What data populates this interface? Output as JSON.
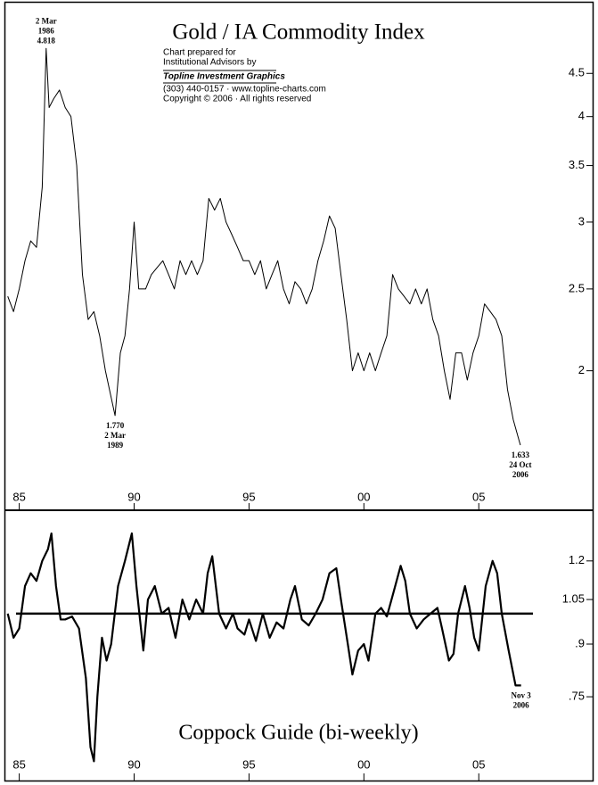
{
  "chart_data": [
    {
      "type": "line",
      "title": "Gold / IA Commodity Index",
      "credits": [
        "Chart prepared for",
        "Institutional Advisors by",
        "Topline Investment Graphics",
        "(303) 440-0157 · www.topline-charts.com",
        "Copyright © 2006 · All rights reserved"
      ],
      "log_scale": true,
      "color": "#000000",
      "xlim": [
        1984.55,
        2007.9
      ],
      "ylim": [
        1.46,
        5.3
      ],
      "xticks": [
        {
          "value": 1985,
          "label": "85"
        },
        {
          "value": 1990,
          "label": "90"
        },
        {
          "value": 1995,
          "label": "95"
        },
        {
          "value": 2000,
          "label": "00"
        },
        {
          "value": 2005,
          "label": "05"
        }
      ],
      "yticks": [
        4.5,
        4,
        3.5,
        3,
        2.5,
        2
      ],
      "x": [
        1984.5,
        1984.75,
        1985.0,
        1985.25,
        1985.5,
        1985.75,
        1986.0,
        1986.17,
        1986.3,
        1986.5,
        1986.75,
        1987.0,
        1987.25,
        1987.5,
        1987.75,
        1988.0,
        1988.25,
        1988.5,
        1988.75,
        1989.17,
        1989.4,
        1989.6,
        1989.8,
        1990.0,
        1990.2,
        1990.5,
        1990.75,
        1991.0,
        1991.25,
        1991.5,
        1991.75,
        1992.0,
        1992.25,
        1992.5,
        1992.75,
        1993.0,
        1993.25,
        1993.5,
        1993.75,
        1994.0,
        1994.25,
        1994.5,
        1994.75,
        1995.0,
        1995.25,
        1995.5,
        1995.75,
        1996.0,
        1996.25,
        1996.5,
        1996.75,
        1997.0,
        1997.25,
        1997.5,
        1997.75,
        1998.0,
        1998.25,
        1998.5,
        1998.75,
        1999.0,
        1999.25,
        1999.5,
        1999.75,
        2000.0,
        2000.25,
        2000.5,
        2000.75,
        2001.0,
        2001.25,
        2001.5,
        2001.75,
        2002.0,
        2002.25,
        2002.5,
        2002.75,
        2003.0,
        2003.25,
        2003.5,
        2003.75,
        2004.0,
        2004.25,
        2004.5,
        2004.75,
        2005.0,
        2005.25,
        2005.5,
        2005.75,
        2006.0,
        2006.25,
        2006.5,
        2006.81
      ],
      "values": [
        2.45,
        2.35,
        2.5,
        2.7,
        2.85,
        2.8,
        3.3,
        4.818,
        4.1,
        4.2,
        4.3,
        4.1,
        4.0,
        3.5,
        2.6,
        2.3,
        2.35,
        2.2,
        2.0,
        1.77,
        2.1,
        2.2,
        2.5,
        3.0,
        2.5,
        2.5,
        2.6,
        2.65,
        2.7,
        2.6,
        2.5,
        2.7,
        2.6,
        2.7,
        2.6,
        2.7,
        3.2,
        3.1,
        3.2,
        3.0,
        2.9,
        2.8,
        2.7,
        2.7,
        2.6,
        2.7,
        2.5,
        2.6,
        2.7,
        2.5,
        2.4,
        2.55,
        2.5,
        2.4,
        2.5,
        2.7,
        2.85,
        3.05,
        2.95,
        2.6,
        2.3,
        2.0,
        2.1,
        2.0,
        2.1,
        2.0,
        2.1,
        2.2,
        2.6,
        2.5,
        2.45,
        2.4,
        2.5,
        2.4,
        2.5,
        2.3,
        2.2,
        2.0,
        1.85,
        2.1,
        2.1,
        1.95,
        2.1,
        2.2,
        2.4,
        2.35,
        2.3,
        2.2,
        1.9,
        1.75,
        1.633
      ],
      "annotations": [
        {
          "x": 1986.17,
          "y": 4.818,
          "text": [
            "2 Mar",
            "1986",
            "4.818"
          ]
        },
        {
          "x": 1989.17,
          "y": 1.77,
          "text": [
            "1.770",
            "2 Mar",
            "1989"
          ]
        },
        {
          "x": 2006.81,
          "y": 1.633,
          "text": [
            "1.633",
            "24 Oct",
            "2006"
          ]
        }
      ]
    },
    {
      "type": "line",
      "title": "Coppock Guide (bi-weekly)",
      "log_scale": true,
      "color": "#000000",
      "reference_line": 1,
      "xlim": [
        1984.55,
        2007.9
      ],
      "ylim": [
        0.57,
        1.43
      ],
      "xticks": [
        {
          "value": 1985,
          "label": "85"
        },
        {
          "value": 1990,
          "label": "90"
        },
        {
          "value": 1995,
          "label": "95"
        },
        {
          "value": 2000,
          "label": "00"
        },
        {
          "value": 2005,
          "label": "05"
        }
      ],
      "yticks": [
        1.2,
        1.05,
        {
          "value": 0.9,
          "label": ".9"
        },
        {
          "value": 0.75,
          "label": ".75"
        }
      ],
      "x": [
        1984.5,
        1984.75,
        1985.0,
        1985.25,
        1985.5,
        1985.75,
        1986.0,
        1986.25,
        1986.4,
        1986.6,
        1986.8,
        1987.0,
        1987.3,
        1987.6,
        1987.9,
        1988.1,
        1988.25,
        1988.4,
        1988.6,
        1988.8,
        1989.0,
        1989.3,
        1989.6,
        1989.9,
        1990.1,
        1990.4,
        1990.6,
        1990.9,
        1991.2,
        1991.5,
        1991.8,
        1992.1,
        1992.4,
        1992.7,
        1993.0,
        1993.2,
        1993.4,
        1993.7,
        1994.0,
        1994.3,
        1994.5,
        1994.8,
        1995.0,
        1995.3,
        1995.6,
        1995.9,
        1996.2,
        1996.5,
        1996.8,
        1997.0,
        1997.3,
        1997.6,
        1997.9,
        1998.2,
        1998.5,
        1998.8,
        1999.0,
        1999.3,
        1999.5,
        1999.75,
        2000.0,
        2000.2,
        2000.5,
        2000.75,
        2001.0,
        2001.3,
        2001.6,
        2001.8,
        2002.0,
        2002.3,
        2002.6,
        2002.9,
        2003.2,
        2003.4,
        2003.7,
        2003.9,
        2004.1,
        2004.4,
        2004.6,
        2004.8,
        2005.0,
        2005.3,
        2005.6,
        2005.8,
        2006.0,
        2006.3,
        2006.6,
        2006.84
      ],
      "values": [
        1.0,
        0.92,
        0.95,
        1.1,
        1.15,
        1.12,
        1.2,
        1.25,
        1.32,
        1.1,
        0.98,
        0.98,
        0.99,
        0.95,
        0.8,
        0.63,
        0.6,
        0.75,
        0.92,
        0.85,
        0.9,
        1.1,
        1.2,
        1.32,
        1.1,
        0.88,
        1.05,
        1.1,
        1.0,
        1.02,
        0.92,
        1.05,
        0.98,
        1.05,
        1.0,
        1.15,
        1.22,
        1.0,
        0.95,
        1.0,
        0.95,
        0.93,
        0.98,
        0.91,
        1.0,
        0.92,
        0.97,
        0.95,
        1.05,
        1.1,
        0.98,
        0.96,
        1.0,
        1.05,
        1.15,
        1.17,
        1.05,
        0.9,
        0.81,
        0.88,
        0.9,
        0.85,
        1.0,
        1.02,
        0.99,
        1.08,
        1.18,
        1.12,
        1.0,
        0.95,
        0.98,
        1.0,
        1.02,
        0.95,
        0.85,
        0.87,
        1.0,
        1.1,
        1.02,
        0.92,
        0.88,
        1.1,
        1.2,
        1.15,
        1.0,
        0.88,
        0.78,
        0.78
      ],
      "annotations": [
        {
          "x": 2006.84,
          "y": 0.78,
          "text": [
            "Nov 3",
            "2006"
          ]
        }
      ]
    }
  ]
}
